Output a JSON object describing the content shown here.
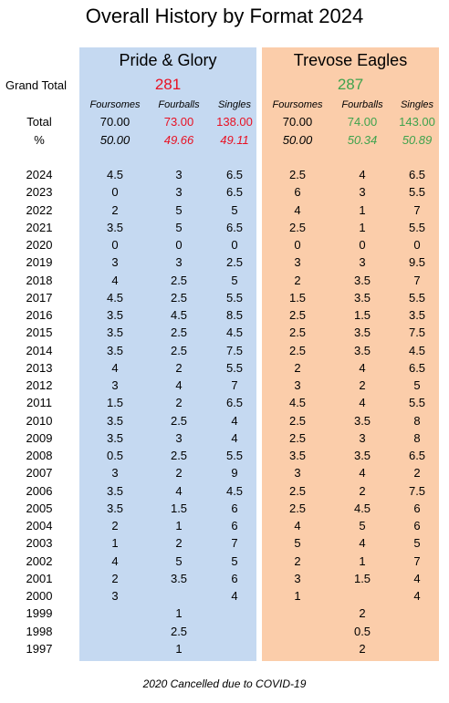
{
  "title": "Overall History by Format 2024",
  "teams": [
    {
      "name": "Pride & Glory",
      "grand_total": "281",
      "color": "#e81123",
      "bg": "#c5d9f1"
    },
    {
      "name": "Trevose Eagles",
      "grand_total": "287",
      "color": "#3fa34d",
      "bg": "#fbcdaa"
    }
  ],
  "labels": {
    "grand_total": "Grand Total",
    "total": "Total",
    "percent": "%"
  },
  "headers": [
    "Foursomes",
    "Fourballs",
    "Singles",
    "Foursomes",
    "Fourballs",
    "Singles"
  ],
  "totals": [
    "70.00",
    "73.00",
    "138.00",
    "70.00",
    "74.00",
    "143.00"
  ],
  "percents": [
    "50.00",
    "49.66",
    "49.11",
    "50.00",
    "50.34",
    "50.89"
  ],
  "rows": [
    {
      "year": "2024",
      "values": [
        "4.5",
        "3",
        "6.5",
        "2.5",
        "4",
        "6.5"
      ]
    },
    {
      "year": "2023",
      "values": [
        "0",
        "3",
        "6.5",
        "6",
        "3",
        "5.5"
      ]
    },
    {
      "year": "2022",
      "values": [
        "2",
        "5",
        "5",
        "4",
        "1",
        "7"
      ]
    },
    {
      "year": "2021",
      "values": [
        "3.5",
        "5",
        "6.5",
        "2.5",
        "1",
        "5.5"
      ]
    },
    {
      "year": "2020",
      "values": [
        "0",
        "0",
        "0",
        "0",
        "0",
        "0"
      ]
    },
    {
      "year": "2019",
      "values": [
        "3",
        "3",
        "2.5",
        "3",
        "3",
        "9.5"
      ]
    },
    {
      "year": "2018",
      "values": [
        "4",
        "2.5",
        "5",
        "2",
        "3.5",
        "7"
      ]
    },
    {
      "year": "2017",
      "values": [
        "4.5",
        "2.5",
        "5.5",
        "1.5",
        "3.5",
        "5.5"
      ]
    },
    {
      "year": "2016",
      "values": [
        "3.5",
        "4.5",
        "8.5",
        "2.5",
        "1.5",
        "3.5"
      ]
    },
    {
      "year": "2015",
      "values": [
        "3.5",
        "2.5",
        "4.5",
        "2.5",
        "3.5",
        "7.5"
      ]
    },
    {
      "year": "2014",
      "values": [
        "3.5",
        "2.5",
        "7.5",
        "2.5",
        "3.5",
        "4.5"
      ]
    },
    {
      "year": "2013",
      "values": [
        "4",
        "2",
        "5.5",
        "2",
        "4",
        "6.5"
      ]
    },
    {
      "year": "2012",
      "values": [
        "3",
        "4",
        "7",
        "3",
        "2",
        "5"
      ]
    },
    {
      "year": "2011",
      "values": [
        "1.5",
        "2",
        "6.5",
        "4.5",
        "4",
        "5.5"
      ]
    },
    {
      "year": "2010",
      "values": [
        "3.5",
        "2.5",
        "4",
        "2.5",
        "3.5",
        "8"
      ]
    },
    {
      "year": "2009",
      "values": [
        "3.5",
        "3",
        "4",
        "2.5",
        "3",
        "8"
      ]
    },
    {
      "year": "2008",
      "values": [
        "0.5",
        "2.5",
        "5.5",
        "3.5",
        "3.5",
        "6.5"
      ]
    },
    {
      "year": "2007",
      "values": [
        "3",
        "2",
        "9",
        "3",
        "4",
        "2"
      ]
    },
    {
      "year": "2006",
      "values": [
        "3.5",
        "4",
        "4.5",
        "2.5",
        "2",
        "7.5"
      ]
    },
    {
      "year": "2005",
      "values": [
        "3.5",
        "1.5",
        "6",
        "2.5",
        "4.5",
        "6"
      ]
    },
    {
      "year": "2004",
      "values": [
        "2",
        "1",
        "6",
        "4",
        "5",
        "6"
      ]
    },
    {
      "year": "2003",
      "values": [
        "1",
        "2",
        "7",
        "5",
        "4",
        "5"
      ]
    },
    {
      "year": "2002",
      "values": [
        "4",
        "5",
        "5",
        "2",
        "1",
        "7"
      ]
    },
    {
      "year": "2001",
      "values": [
        "2",
        "3.5",
        "6",
        "3",
        "1.5",
        "4"
      ]
    },
    {
      "year": "2000",
      "values": [
        "3",
        "",
        "4",
        "1",
        "",
        "4"
      ]
    },
    {
      "year": "1999",
      "values": [
        "",
        "1",
        "",
        "",
        "2",
        ""
      ]
    },
    {
      "year": "1998",
      "values": [
        "",
        "2.5",
        "",
        "",
        "0.5",
        ""
      ]
    },
    {
      "year": "1997",
      "values": [
        "",
        "1",
        "",
        "",
        "2",
        ""
      ]
    }
  ],
  "note": "2020 Cancelled due to COVID-19"
}
